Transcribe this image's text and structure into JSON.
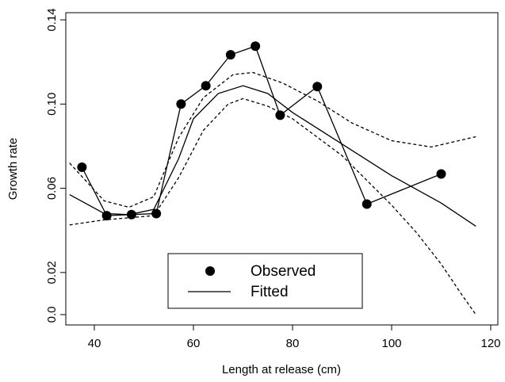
{
  "chart_data": {
    "type": "line",
    "xlabel": "Length at release (cm)",
    "ylabel": "Growth rate",
    "xlim": [
      34.24,
      121.44
    ],
    "xticks": [
      40,
      60,
      80,
      100,
      120
    ],
    "ylim": [
      -0.0049,
      0.1434
    ],
    "yticks": [
      {
        "value": 0,
        "label": "0.0"
      },
      0.02,
      0.06,
      {
        "value": 0.1,
        "label": "0.10"
      },
      0.14
    ],
    "series": [
      {
        "name": "Observed",
        "color": "#000000",
        "marker": "circle",
        "connect": true,
        "x": [
          37.5,
          42.5,
          47.5,
          52.5,
          57.5,
          62.5,
          67.5,
          72.5,
          77.5,
          85,
          95,
          110
        ],
        "values": [
          0.07,
          0.047,
          0.0475,
          0.048,
          0.1,
          0.1087,
          0.1234,
          0.1275,
          0.0947,
          0.1083,
          0.0525,
          0.0668
        ]
      },
      {
        "name": "Fitted",
        "color": "#000000",
        "dash": "solid",
        "x": [
          35,
          42,
          47,
          52,
          57,
          60,
          65,
          70,
          75,
          80,
          90,
          100,
          110,
          117
        ],
        "values": [
          0.057,
          0.048,
          0.0475,
          0.05,
          0.074,
          0.093,
          0.105,
          0.1087,
          0.105,
          0.096,
          0.081,
          0.066,
          0.053,
          0.042
        ]
      }
    ],
    "bands": [
      {
        "color": "#000000",
        "dash": "dotted",
        "x": [
          35,
          42,
          47,
          52,
          57,
          62,
          68,
          72,
          78,
          85,
          92,
          100,
          108,
          117
        ],
        "values": [
          0.072,
          0.054,
          0.051,
          0.056,
          0.084,
          0.103,
          0.114,
          0.115,
          0.11,
          0.1015,
          0.091,
          0.0826,
          0.0796,
          0.0845
        ]
      },
      {
        "color": "#000000",
        "dash": "dotted",
        "x": [
          35,
          42,
          47,
          52,
          57,
          62,
          67,
          70,
          75,
          80,
          90,
          100,
          105,
          110,
          114,
          117
        ],
        "values": [
          0.0426,
          0.045,
          0.046,
          0.047,
          0.065,
          0.0875,
          0.1,
          0.1026,
          0.099,
          0.093,
          0.0755,
          0.052,
          0.039,
          0.024,
          0.01,
          0
        ]
      }
    ]
  }
}
